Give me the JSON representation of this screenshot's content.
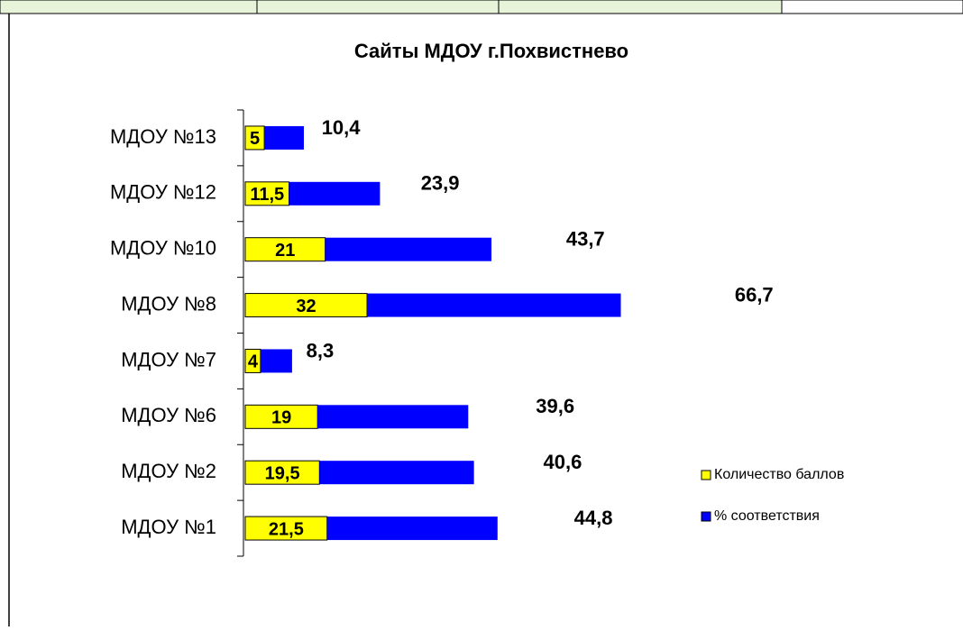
{
  "chart_data": {
    "type": "stacked-bar-horizontal",
    "title": "Сайты МДОУ г.Похвистнево",
    "categories": [
      "МДОУ №1",
      "МДОУ №2",
      "МДОУ №6",
      "МДОУ №7",
      "МДОУ №8",
      "МДОУ №10",
      "МДОУ №12",
      "МДОУ №13"
    ],
    "series": [
      {
        "name": "Количество баллов",
        "color": "#ffff00",
        "values": [
          21.5,
          19.5,
          19,
          4,
          32,
          21,
          11.5,
          5
        ],
        "value_labels": [
          "21,5",
          "19,5",
          "19",
          "4",
          "32",
          "21",
          "11,5",
          "5"
        ]
      },
      {
        "name": "% соответствия",
        "color": "#0000ff",
        "values": [
          44.8,
          40.6,
          39.6,
          8.3,
          66.7,
          43.7,
          23.9,
          10.4
        ],
        "value_labels": [
          "44,8",
          "40,6",
          "39,6",
          "8,3",
          "66,7",
          "43,7",
          "23,9",
          "10,4"
        ]
      }
    ],
    "legend": "right"
  }
}
